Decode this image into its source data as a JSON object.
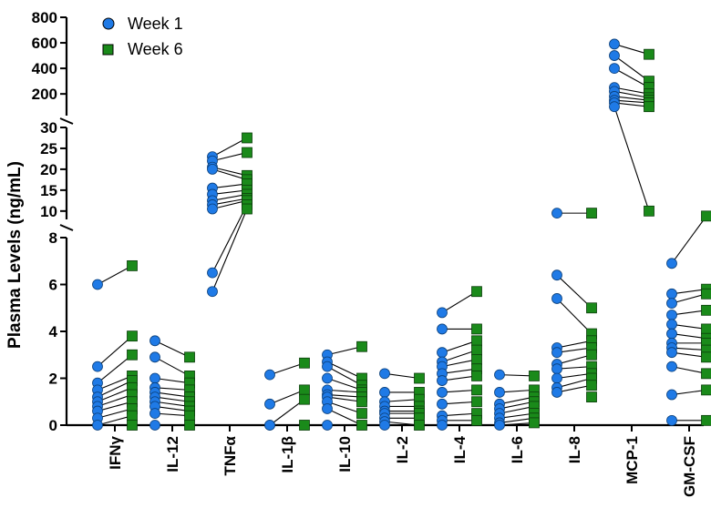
{
  "colors": {
    "week1": "#1f7ae6",
    "week6": "#1a8a1a",
    "line": "#000000"
  },
  "chart_data": {
    "type": "scatter",
    "subtype": "paired-dot-plot with broken y-axis",
    "ylabel": "Plasma Levels (ng/mL)",
    "legend": {
      "position": "top-left",
      "items": [
        "Week 1",
        "Week 6"
      ]
    },
    "categories": [
      "IFNγ",
      "IL-12",
      "TNFα",
      "IL-1β",
      "IL-10",
      "IL-2",
      "IL-4",
      "IL-6",
      "IL-8",
      "MCP-1",
      "GM-CSF"
    ],
    "y_segments": [
      {
        "range": [
          0,
          8
        ],
        "ticks": [
          "0",
          "2",
          "4",
          "6",
          "8"
        ]
      },
      {
        "range": [
          8,
          30
        ],
        "ticks": [
          "10",
          "15",
          "20",
          "25",
          "30"
        ]
      },
      {
        "range": [
          30,
          800
        ],
        "ticks": [
          "200",
          "400",
          "600",
          "800"
        ]
      }
    ],
    "series": [
      {
        "name": "Week 1",
        "values": [
          [
            6.0,
            2.5,
            1.8,
            1.5,
            1.2,
            1.0,
            0.8,
            0.6,
            0.3,
            0.0
          ],
          [
            3.6,
            2.9,
            2.0,
            1.6,
            1.4,
            1.2,
            1.0,
            0.8,
            0.5,
            0.0
          ],
          [
            23,
            22,
            20.5,
            20,
            15.5,
            14,
            12.5,
            11.5,
            10.5,
            6.5,
            5.7
          ],
          [
            2.15,
            0.9,
            0.0,
            0.0
          ],
          [
            3.0,
            2.7,
            2.5,
            2.0,
            1.5,
            1.3,
            1.2,
            1.0,
            0.7,
            0.0
          ],
          [
            2.2,
            1.4,
            1.0,
            0.8,
            0.6,
            0.5,
            0.3,
            0.15,
            0.0
          ],
          [
            4.8,
            4.1,
            3.1,
            2.7,
            2.5,
            2.2,
            1.9,
            1.4,
            0.9,
            0.4,
            0.2,
            0.0
          ],
          [
            2.15,
            1.4,
            0.9,
            0.7,
            0.5,
            0.3,
            0.1,
            0.0
          ],
          [
            9.5,
            6.4,
            5.4,
            3.3,
            3.1,
            2.6,
            2.4,
            2.0,
            1.6,
            1.4
          ],
          [
            590,
            500,
            400,
            250,
            220,
            180,
            150,
            130,
            100
          ],
          [
            6.9,
            5.6,
            5.2,
            4.7,
            4.3,
            3.9,
            3.5,
            3.3,
            3.1,
            2.5,
            1.3,
            0.2
          ]
        ]
      },
      {
        "name": "Week 6",
        "values": [
          [
            6.8,
            3.8,
            3.0,
            2.1,
            1.9,
            1.6,
            1.3,
            1.0,
            0.7,
            0.4,
            0.0
          ],
          [
            2.9,
            2.1,
            1.8,
            1.5,
            1.2,
            1.0,
            0.8,
            0.6,
            0.4,
            0.0
          ],
          [
            27.5,
            24,
            18.5,
            17.5,
            16.5,
            15,
            14,
            13,
            12.5,
            11.5,
            10.5
          ],
          [
            2.65,
            1.5,
            1.1,
            0.0
          ],
          [
            3.35,
            2.0,
            1.7,
            1.5,
            1.4,
            1.2,
            1.0,
            0.5,
            0.0
          ],
          [
            2.0,
            1.4,
            1.1,
            0.8,
            0.6,
            0.5,
            0.3,
            0.0
          ],
          [
            5.7,
            4.1,
            3.6,
            3.2,
            2.8,
            2.4,
            2.1,
            1.5,
            1.0,
            0.5,
            0.2
          ],
          [
            2.1,
            1.5,
            1.2,
            1.0,
            0.8,
            0.5,
            0.3,
            0.1
          ],
          [
            9.5,
            5.0,
            3.9,
            3.6,
            3.3,
            3.0,
            2.5,
            2.2,
            2.0,
            1.7,
            1.2
          ],
          [
            510,
            300,
            250,
            200,
            170,
            150,
            130,
            100,
            10
          ],
          [
            8.8,
            5.8,
            5.6,
            4.9,
            4.1,
            3.7,
            3.5,
            3.2,
            2.9,
            2.2,
            1.5,
            0.2
          ]
        ]
      }
    ]
  }
}
